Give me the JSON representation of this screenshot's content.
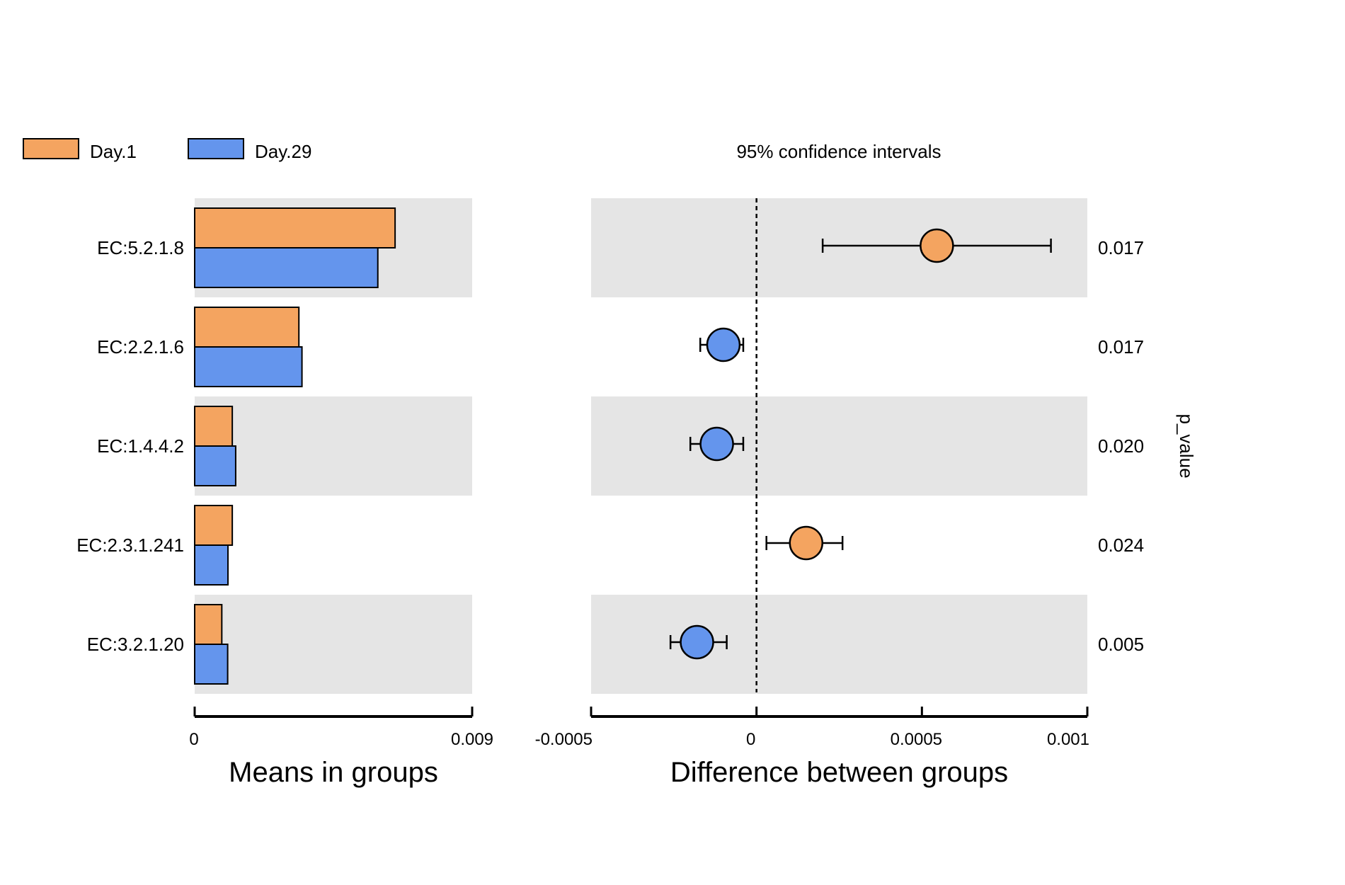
{
  "chart_data": [
    {
      "type": "bar",
      "orientation": "horizontal",
      "categories": [
        "EC:5.2.1.8",
        "EC:2.2.1.6",
        "EC:1.4.4.2",
        "EC:2.3.1.241",
        "EC:3.2.1.20"
      ],
      "series": [
        {
          "name": "Day.1",
          "color": "#f4a460",
          "values": [
            0.0065,
            0.00338,
            0.00122,
            0.00122,
            0.00088
          ]
        },
        {
          "name": "Day.29",
          "color": "#6495ed",
          "values": [
            0.00594,
            0.00348,
            0.00133,
            0.00108,
            0.00107
          ]
        }
      ],
      "xlabel": "Means in groups",
      "xlim": [
        0,
        0.009
      ],
      "xtick_labels": [
        "0",
        "0.009"
      ],
      "legend_position": "top-left",
      "grid": false
    },
    {
      "type": "scatter",
      "subtitle": "95% confidence intervals",
      "categories": [
        "EC:5.2.1.8",
        "EC:2.2.1.6",
        "EC:1.4.4.2",
        "EC:2.3.1.241",
        "EC:3.2.1.20"
      ],
      "points": [
        {
          "category": "EC:5.2.1.8",
          "diff": 0.000545,
          "ci_low": 0.0002,
          "ci_high": 0.00089,
          "higher_group": "Day.1"
        },
        {
          "category": "EC:2.2.1.6",
          "diff": -0.0001,
          "ci_low": -0.00017,
          "ci_high": -4e-05,
          "higher_group": "Day.29"
        },
        {
          "category": "EC:1.4.4.2",
          "diff": -0.00012,
          "ci_low": -0.0002,
          "ci_high": -4e-05,
          "higher_group": "Day.29"
        },
        {
          "category": "EC:2.3.1.241",
          "diff": 0.00015,
          "ci_low": 3e-05,
          "ci_high": 0.00026,
          "higher_group": "Day.1"
        },
        {
          "category": "EC:3.2.1.20",
          "diff": -0.00018,
          "ci_low": -0.00026,
          "ci_high": -9e-05,
          "higher_group": "Day.29"
        }
      ],
      "xlabel": "Difference between groups",
      "xlim": [
        -0.0005,
        0.001
      ],
      "xticks": [
        -0.0005,
        0,
        0.0005,
        0.001
      ],
      "xtick_labels": [
        "-0.0005",
        "0",
        "0.0005",
        "0.001"
      ],
      "reference_line": 0,
      "p_value_label": "p_value",
      "p_values": [
        "0.017",
        "0.017",
        "0.020",
        "0.024",
        "0.005"
      ],
      "grid": false
    }
  ]
}
